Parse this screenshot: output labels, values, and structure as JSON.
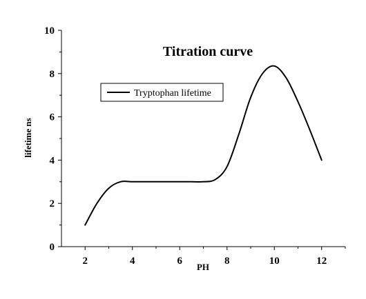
{
  "chart_data": {
    "type": "line",
    "title": "Titration curve",
    "xlabel": "PH",
    "ylabel": "lifetime ns",
    "xlim": [
      1,
      13
    ],
    "ylim": [
      0,
      10
    ],
    "xticks": [
      2,
      4,
      6,
      8,
      10,
      12
    ],
    "yticks": [
      0,
      2,
      4,
      6,
      8,
      10
    ],
    "grid": false,
    "legend_position": "top-left",
    "series": [
      {
        "name": "Tryptophan lifetime",
        "color": "#000000",
        "x": [
          2,
          2.5,
          3,
          3.5,
          4,
          4.5,
          5,
          5.5,
          6,
          6.5,
          7,
          7.5,
          8,
          8.5,
          9,
          9.5,
          10,
          10.5,
          11,
          11.5,
          12
        ],
        "y": [
          1.0,
          2.0,
          2.7,
          3.0,
          3.0,
          3.0,
          3.0,
          3.0,
          3.0,
          3.0,
          3.0,
          3.1,
          3.7,
          5.2,
          6.9,
          8.0,
          8.35,
          7.8,
          6.7,
          5.4,
          4.0
        ]
      }
    ]
  }
}
